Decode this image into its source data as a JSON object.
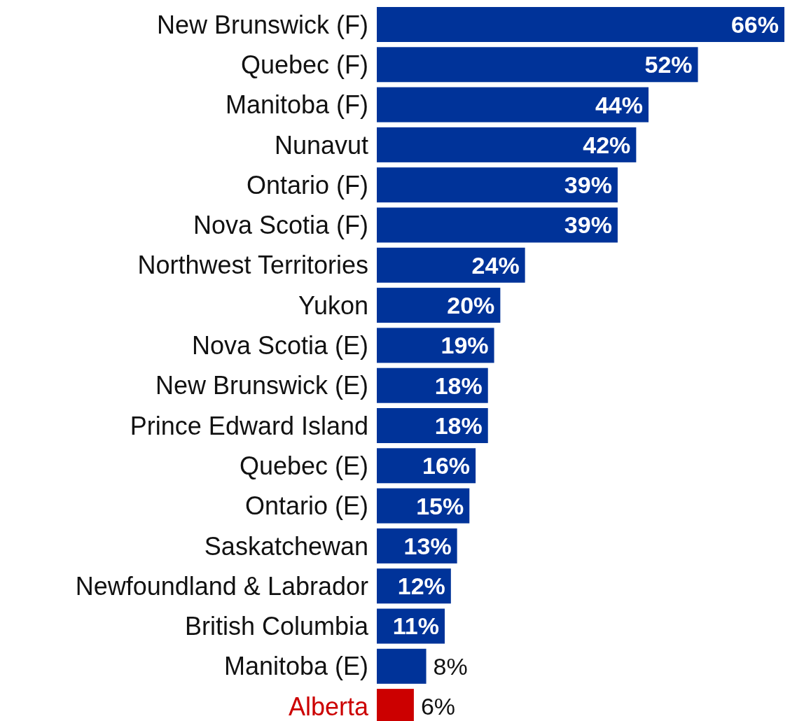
{
  "chart_data": {
    "type": "bar",
    "orientation": "horizontal",
    "categories": [
      "New Brunswick (F)",
      "Quebec (F)",
      "Manitoba (F)",
      "Nunavut",
      "Ontario (F)",
      "Nova Scotia (F)",
      "Northwest Territories",
      "Yukon",
      "Nova Scotia (E)",
      "New Brunswick (E)",
      "Prince Edward Island",
      "Quebec (E)",
      "Ontario (E)",
      "Saskatchewan",
      "Newfoundland & Labrador",
      "British Columbia",
      "Manitoba (E)",
      "Alberta"
    ],
    "values": [
      66,
      52,
      44,
      42,
      39,
      39,
      24,
      20,
      19,
      18,
      18,
      16,
      15,
      13,
      12,
      11,
      8,
      6
    ],
    "value_labels": [
      "66%",
      "52%",
      "44%",
      "42%",
      "39%",
      "39%",
      "24%",
      "20%",
      "19%",
      "18%",
      "18%",
      "16%",
      "15%",
      "13%",
      "12%",
      "11%",
      "8%",
      "6%"
    ],
    "colors": [
      "#003399",
      "#003399",
      "#003399",
      "#003399",
      "#003399",
      "#003399",
      "#003399",
      "#003399",
      "#003399",
      "#003399",
      "#003399",
      "#003399",
      "#003399",
      "#003399",
      "#003399",
      "#003399",
      "#003399",
      "#cc0000"
    ]
  }
}
